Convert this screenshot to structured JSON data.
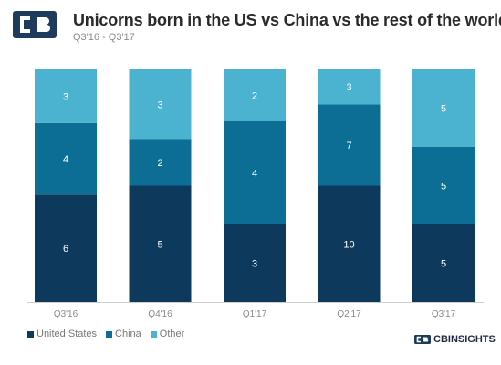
{
  "header": {
    "title": "Unicorns born in the US vs China vs the rest of the world",
    "subtitle": "Q3'16 - Q3'17"
  },
  "colors": {
    "united_states": "#0d3a5c",
    "china": "#0d6e95",
    "other": "#4bb3d0",
    "axis": "#cfcfcf",
    "label_on_bar": "#ffffff"
  },
  "icons": {
    "logo": "cb-insights-logo-icon",
    "brand": "cb-insights-mark-icon"
  },
  "brand": {
    "label": "CBINSIGHTS"
  },
  "chart_data": {
    "type": "bar",
    "stacked": true,
    "categories": [
      "Q3'16",
      "Q4'16",
      "Q1'17",
      "Q2'17",
      "Q3'17"
    ],
    "series": [
      {
        "name": "United States",
        "values": [
          6,
          5,
          3,
          10,
          5
        ]
      },
      {
        "name": "China",
        "values": [
          4,
          2,
          4,
          7,
          5
        ]
      },
      {
        "name": "Other",
        "values": [
          3,
          3,
          2,
          3,
          5
        ]
      }
    ],
    "normalized_to_100_percent": true,
    "title": "Unicorns born in the US vs China vs the rest of the world",
    "subtitle": "Q3'16 - Q3'17",
    "xlabel": "",
    "ylabel": "",
    "grid": false,
    "legend": "bottom-left"
  }
}
